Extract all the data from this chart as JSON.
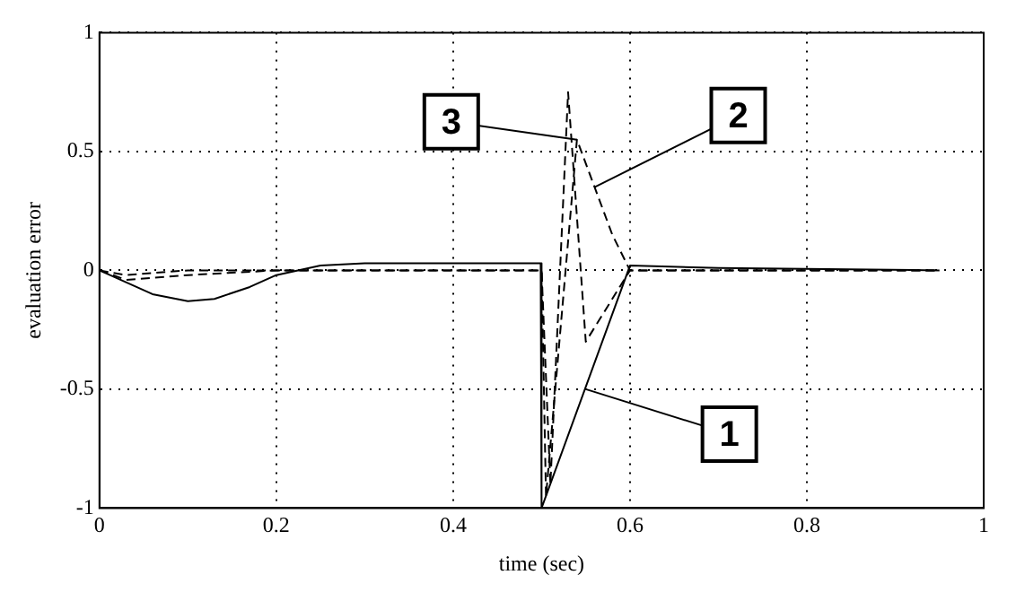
{
  "chart_data": {
    "type": "line",
    "xlabel": "time (sec)",
    "ylabel": "evaluation error",
    "xlim": [
      0,
      1
    ],
    "xticks": [
      0,
      0.2,
      0.4,
      0.6,
      0.8,
      1
    ],
    "ylim": [
      -1,
      1
    ],
    "yticks": [
      -1,
      -0.5,
      0,
      0.5,
      1
    ],
    "grid": true,
    "legend": false,
    "marker": "none",
    "series": [
      {
        "color": "#000000",
        "line_style": "solid",
        "x": [
          0,
          0.03,
          0.06,
          0.1,
          0.13,
          0.17,
          0.2,
          0.25,
          0.3,
          0.4,
          0.499,
          0.5,
          0.6,
          0.7,
          0.95
        ],
        "values": [
          0,
          -0.05,
          -0.1,
          -0.13,
          -0.12,
          -0.07,
          -0.02,
          0.02,
          0.03,
          0.03,
          0.03,
          -1,
          0.02,
          0.01,
          0
        ]
      },
      {
        "color": "#000000",
        "line_style": "dashed",
        "x": [
          0,
          0.03,
          0.1,
          0.2,
          0.3,
          0.5,
          0.505,
          0.54,
          0.58,
          0.6,
          0.7,
          0.95
        ],
        "values": [
          0,
          -0.04,
          -0.02,
          0,
          0,
          0,
          -0.95,
          0.55,
          0.15,
          0,
          0,
          0
        ]
      },
      {
        "color": "#000000",
        "line_style": "dashed",
        "x": [
          0,
          0.03,
          0.1,
          0.2,
          0.3,
          0.5,
          0.51,
          0.53,
          0.55,
          0.6,
          0.7,
          0.95
        ],
        "values": [
          0,
          -0.02,
          0,
          0,
          0,
          0,
          -0.9,
          0.75,
          -0.3,
          0,
          0,
          0
        ]
      }
    ],
    "annotations": [
      {
        "text": "1",
        "x": 0.55,
        "y": -0.5
      },
      {
        "text": "2",
        "x": 0.56,
        "y": 0.35
      },
      {
        "text": "3",
        "x": 0.54,
        "y": 0.55
      }
    ]
  }
}
